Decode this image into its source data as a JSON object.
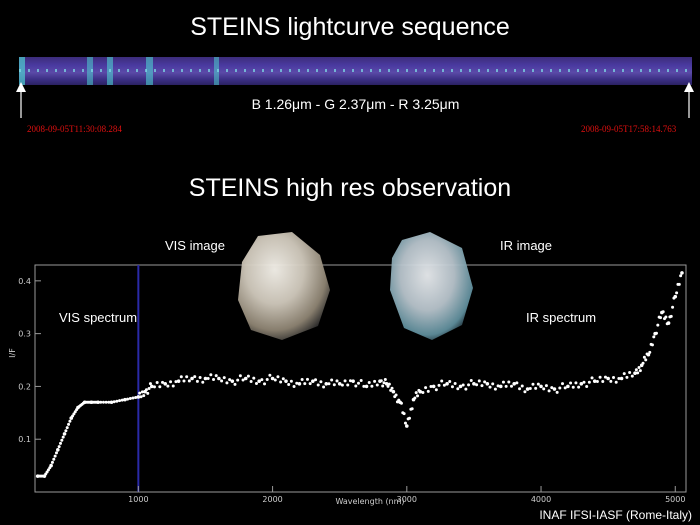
{
  "header": {
    "title": "STEINS lightcurve sequence",
    "bands": "B 1.26μm - G 2.37μm - R 3.25μm",
    "start_time": "2008-09-05T11:30:08.284",
    "end_time": "2008-09-05T17:58:14.763"
  },
  "section2": {
    "title": "STEINS high res observation"
  },
  "labels": {
    "vis_image": "VIS image",
    "ir_image": "IR image",
    "vis_spectrum": "VIS spectrum",
    "ir_spectrum": "IR spectrum"
  },
  "credit": "INAF IFSI-IASF (Rome-Italy)",
  "colors": {
    "timestamp": "#e01010",
    "strip": "#4a3aa0",
    "divider": "#2a2aa8"
  },
  "chart_data": {
    "type": "scatter",
    "title": "",
    "xlabel": "Wavelength (nm)",
    "ylabel": "I/F",
    "xlim": [
      230,
      5080
    ],
    "ylim": [
      0,
      0.43
    ],
    "xticks": [
      "1000",
      "2000",
      "3000",
      "4000",
      "5000"
    ],
    "yticks": [
      "0.1",
      "0.2",
      "0.3",
      "0.4"
    ],
    "series": [
      {
        "x": [
          250,
          300,
          350,
          400,
          450,
          500,
          550,
          600,
          650,
          700,
          800,
          900,
          1000,
          1050,
          1100,
          1200,
          1300,
          1400,
          1500,
          1600,
          1700,
          1800,
          1900,
          2000,
          2100,
          2200,
          2300,
          2400,
          2500,
          2600,
          2700,
          2800,
          2850,
          2900,
          2950,
          3000,
          3050,
          3100,
          3200,
          3300,
          3400,
          3500,
          3600,
          3700,
          3800,
          3900,
          4000,
          4100,
          4200,
          4300,
          4400,
          4500,
          4600,
          4700,
          4750,
          4800,
          4850,
          4900,
          4950,
          5000,
          5050
        ],
        "y": [
          0.03,
          0.03,
          0.05,
          0.08,
          0.11,
          0.14,
          0.16,
          0.17,
          0.17,
          0.17,
          0.17,
          0.175,
          0.18,
          0.19,
          0.2,
          0.205,
          0.21,
          0.215,
          0.215,
          0.215,
          0.21,
          0.215,
          0.21,
          0.215,
          0.21,
          0.205,
          0.21,
          0.205,
          0.205,
          0.21,
          0.2,
          0.21,
          0.205,
          0.19,
          0.17,
          0.125,
          0.175,
          0.19,
          0.2,
          0.205,
          0.2,
          0.205,
          0.205,
          0.2,
          0.205,
          0.195,
          0.2,
          0.195,
          0.2,
          0.205,
          0.21,
          0.215,
          0.215,
          0.225,
          0.24,
          0.26,
          0.3,
          0.34,
          0.32,
          0.37,
          0.415
        ]
      }
    ],
    "highlight_x": 1000
  }
}
